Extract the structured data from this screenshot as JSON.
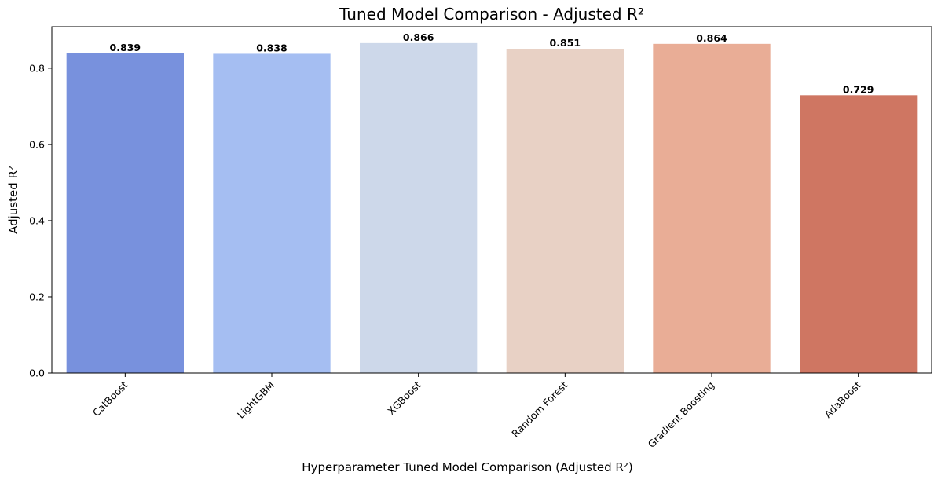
{
  "chart_data": {
    "type": "bar",
    "title": "Tuned Model Comparison - Adjusted R²",
    "xlabel": "Hyperparameter Tuned Model Comparison (Adjusted R²)",
    "ylabel": "Adjusted R²",
    "categories": [
      "CatBoost",
      "LightGBM",
      "XGBoost",
      "Random Forest",
      "Gradient Boosting",
      "AdaBoost"
    ],
    "values": [
      0.839,
      0.838,
      0.866,
      0.851,
      0.864,
      0.729
    ],
    "value_labels": [
      "0.839",
      "0.838",
      "0.866",
      "0.851",
      "0.864",
      "0.729"
    ],
    "colors": [
      "#7891dd",
      "#a5bef2",
      "#cdd8ea",
      "#e8d1c5",
      "#e9ad96",
      "#cf7662"
    ],
    "ylim": [
      0,
      0.909
    ],
    "yticks": [
      0.0,
      0.2,
      0.4,
      0.6,
      0.8
    ],
    "ytick_labels": [
      "0.0",
      "0.2",
      "0.4",
      "0.6",
      "0.8"
    ],
    "grid": false,
    "legend": "none"
  }
}
